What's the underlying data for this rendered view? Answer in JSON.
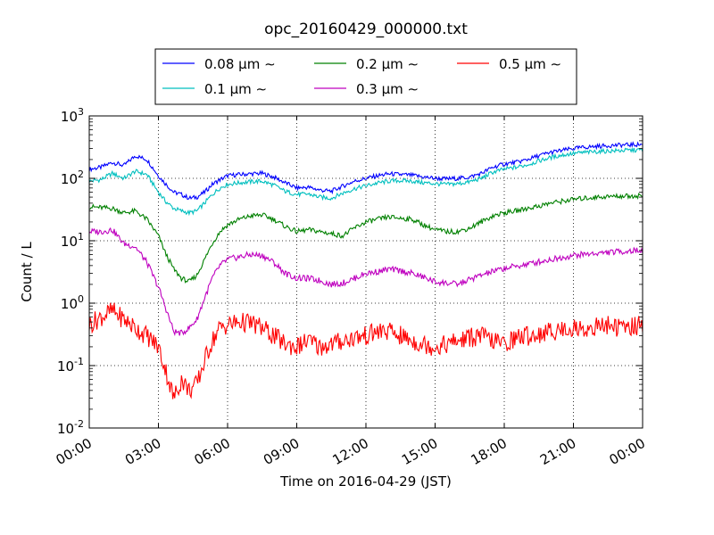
{
  "chart_data": {
    "type": "line",
    "title": "opc_20160429_000000.txt",
    "xlabel": "Time on 2016-04-29 (JST)",
    "ylabel": "Count / L",
    "y_scale": "log",
    "xlim": [
      "2016-04-29 00:00",
      "2016-04-30 00:00"
    ],
    "ylim": [
      0.01,
      1000
    ],
    "x_ticks": [
      "00:00",
      "03:00",
      "06:00",
      "09:00",
      "12:00",
      "15:00",
      "18:00",
      "21:00",
      "00:00"
    ],
    "y_ticks": [
      {
        "base": "10",
        "exp": "-2"
      },
      {
        "base": "10",
        "exp": "-1"
      },
      {
        "base": "10",
        "exp": "0"
      },
      {
        "base": "10",
        "exp": "1"
      },
      {
        "base": "10",
        "exp": "2"
      },
      {
        "base": "10",
        "exp": "3"
      }
    ],
    "grid": true,
    "grid_style": "dotted",
    "legend_position": "top, above plot",
    "x": [
      "00:00",
      "00:30",
      "01:00",
      "01:30",
      "02:00",
      "02:30",
      "03:00",
      "03:20",
      "03:40",
      "04:00",
      "04:20",
      "04:40",
      "05:00",
      "05:20",
      "05:40",
      "06:00",
      "06:30",
      "07:00",
      "07:30",
      "08:00",
      "08:30",
      "09:00",
      "09:30",
      "10:00",
      "10:30",
      "11:00",
      "11:30",
      "12:00",
      "12:30",
      "13:00",
      "13:30",
      "14:00",
      "14:30",
      "15:00",
      "15:30",
      "16:00",
      "16:30",
      "17:00",
      "17:30",
      "18:00",
      "18:30",
      "19:00",
      "19:30",
      "20:00",
      "20:30",
      "21:00",
      "21:30",
      "22:00",
      "22:30",
      "23:00",
      "23:30",
      "24:00"
    ],
    "series": [
      {
        "name": "0.08 μm ∼",
        "color": "#0000ff",
        "values": [
          140,
          150,
          180,
          160,
          230,
          200,
          110,
          80,
          60,
          55,
          48,
          50,
          60,
          80,
          95,
          110,
          115,
          118,
          120,
          105,
          85,
          70,
          72,
          65,
          62,
          75,
          90,
          100,
          110,
          118,
          115,
          112,
          105,
          100,
          98,
          100,
          105,
          120,
          150,
          170,
          180,
          200,
          230,
          260,
          280,
          300,
          315,
          325,
          335,
          340,
          345,
          350
        ]
      },
      {
        "name": "0.1 μm ∼",
        "color": "#00bfbf",
        "values": [
          90,
          95,
          120,
          100,
          130,
          115,
          60,
          42,
          33,
          30,
          28,
          30,
          40,
          55,
          70,
          80,
          85,
          88,
          90,
          78,
          62,
          55,
          56,
          50,
          48,
          58,
          68,
          76,
          84,
          90,
          92,
          90,
          85,
          82,
          80,
          82,
          88,
          100,
          125,
          140,
          150,
          165,
          190,
          215,
          235,
          250,
          260,
          268,
          274,
          278,
          282,
          285
        ]
      },
      {
        "name": "0.2 μm ∼",
        "color": "#008000",
        "values": [
          35,
          34,
          33,
          28,
          30,
          22,
          12,
          6,
          3.5,
          2.5,
          2.2,
          2.8,
          5,
          9,
          14,
          18,
          22,
          25,
          26,
          22,
          17,
          14,
          15,
          14,
          13,
          12,
          16,
          20,
          22,
          24,
          23,
          22,
          18,
          15,
          14,
          14,
          16,
          20,
          25,
          28,
          30,
          33,
          36,
          40,
          43,
          46,
          48,
          50,
          51,
          52,
          52,
          53
        ]
      },
      {
        "name": "0.3 μm ∼",
        "color": "#bf00bf",
        "values": [
          14,
          14,
          15,
          9,
          8,
          4.5,
          1.8,
          0.8,
          0.35,
          0.33,
          0.4,
          0.55,
          1.2,
          2.5,
          4,
          5,
          5.5,
          6,
          5.8,
          4.5,
          3,
          2.5,
          2.5,
          2.3,
          2,
          2.1,
          2.5,
          3,
          3.2,
          3.5,
          3.3,
          3,
          2.6,
          2.2,
          2.1,
          2,
          2.4,
          2.8,
          3.2,
          3.6,
          3.9,
          4.2,
          4.6,
          5,
          5.4,
          5.8,
          6.1,
          6.3,
          6.5,
          6.7,
          6.9,
          7
        ]
      },
      {
        "name": "0.5 μm ∼",
        "color": "#ff0000",
        "values": [
          0.45,
          0.6,
          0.75,
          0.55,
          0.4,
          0.3,
          0.2,
          0.08,
          0.03,
          0.06,
          0.04,
          0.05,
          0.12,
          0.25,
          0.4,
          0.45,
          0.5,
          0.48,
          0.4,
          0.3,
          0.22,
          0.2,
          0.25,
          0.2,
          0.22,
          0.25,
          0.28,
          0.3,
          0.35,
          0.35,
          0.3,
          0.25,
          0.22,
          0.2,
          0.22,
          0.25,
          0.28,
          0.3,
          0.25,
          0.22,
          0.28,
          0.3,
          0.32,
          0.35,
          0.38,
          0.4,
          0.38,
          0.42,
          0.45,
          0.4,
          0.42,
          0.45
        ]
      }
    ]
  }
}
